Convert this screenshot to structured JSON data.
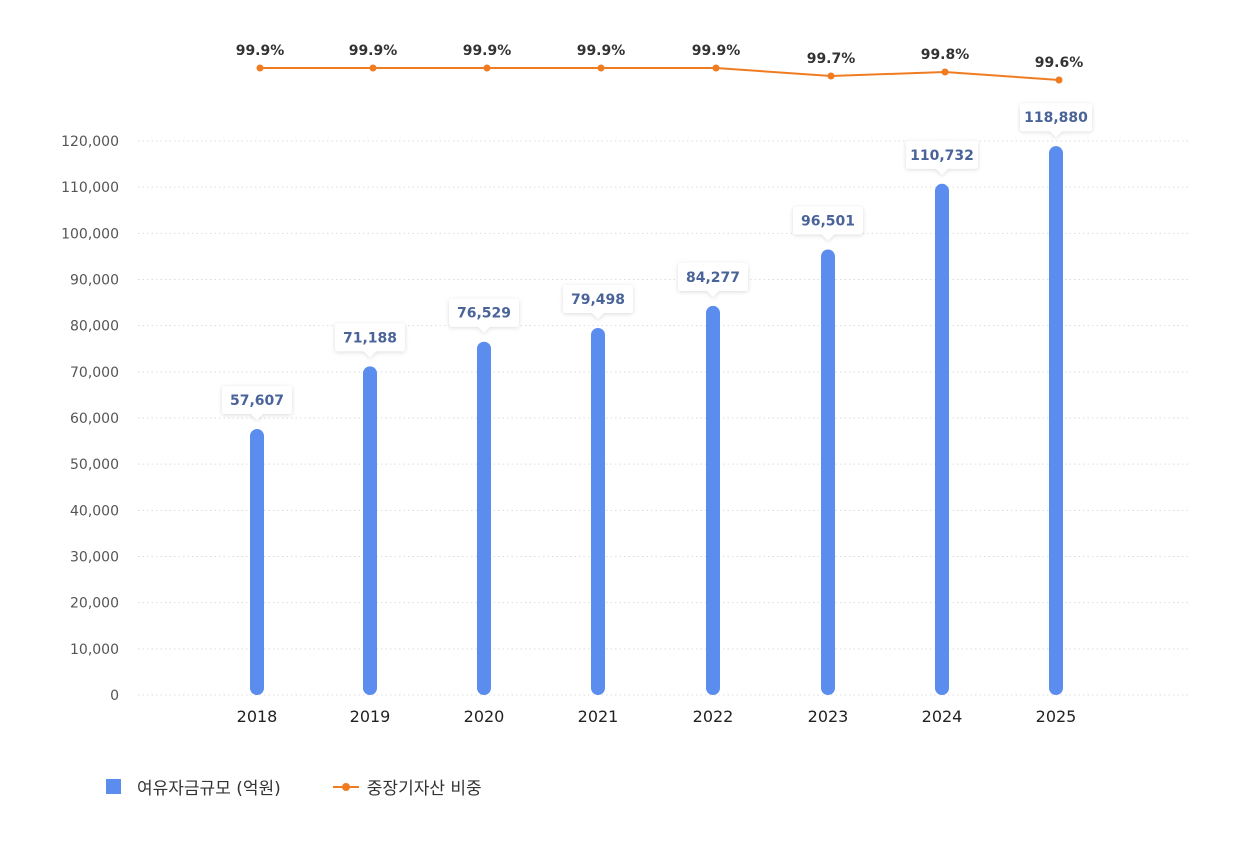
{
  "chart_data": {
    "type": "bar",
    "categories": [
      "2018",
      "2019",
      "2020",
      "2021",
      "2022",
      "2023",
      "2024",
      "2025"
    ],
    "series": [
      {
        "name": "여유자금규모 (억원)",
        "type": "bar",
        "values": [
          57607,
          71188,
          76529,
          79498,
          84277,
          96501,
          110732,
          118880
        ],
        "labels": [
          "57,607",
          "71,188",
          "76,529",
          "79,498",
          "84,277",
          "96,501",
          "110,732",
          "118,880"
        ],
        "color": "#5b8def"
      },
      {
        "name": "중장기자산 비중",
        "type": "line",
        "values": [
          99.9,
          99.9,
          99.9,
          99.9,
          99.9,
          99.7,
          99.8,
          99.6
        ],
        "labels": [
          "99.9%",
          "99.9%",
          "99.9%",
          "99.9%",
          "99.9%",
          "99.7%",
          "99.8%",
          "99.6%"
        ],
        "color": "#f07c22"
      }
    ],
    "ylim": [
      0,
      120000
    ],
    "yticks": [
      0,
      10000,
      20000,
      30000,
      40000,
      50000,
      60000,
      70000,
      80000,
      90000,
      100000,
      110000,
      120000
    ],
    "ytick_labels": [
      "0",
      "10,000",
      "20,000",
      "30,000",
      "40,000",
      "50,000",
      "60,000",
      "70,000",
      "80,000",
      "90,000",
      "100,000",
      "110,000",
      "120,000"
    ],
    "grid": true,
    "legend": "bottom-left",
    "title": "",
    "xlabel": "",
    "ylabel": ""
  },
  "legend": {
    "bar_label": "여유자금규모 (억원)",
    "line_label": "중장기자산 비중"
  }
}
